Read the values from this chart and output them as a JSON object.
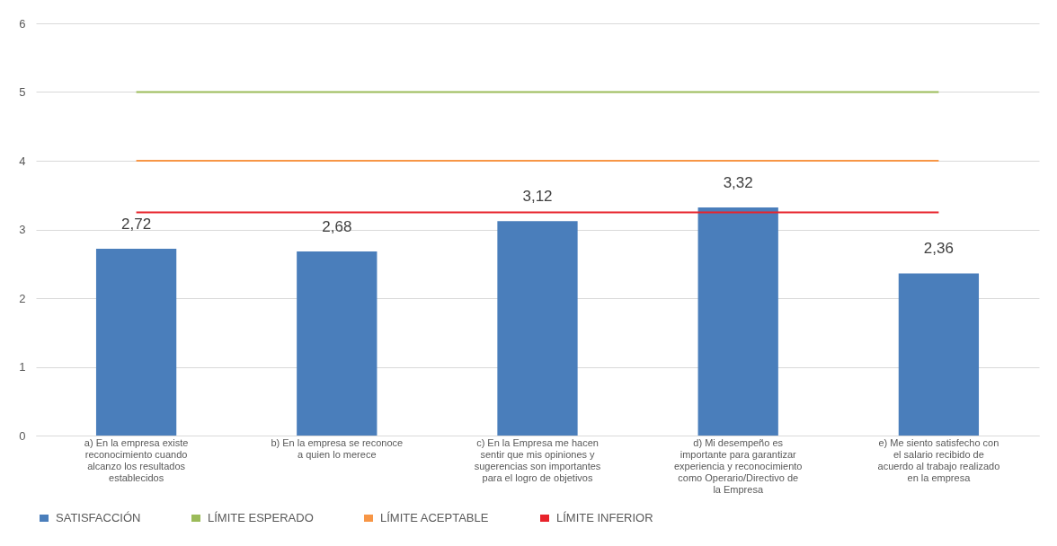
{
  "chart_data": {
    "type": "bar",
    "categories": [
      "a) En la empresa existe reconocimiento cuando alcanzo los resultados establecidos",
      "b) En la empresa se reconoce a quien lo merece",
      "c) En la Empresa me hacen sentir que mis opiniones y sugerencias son importantes para el logro de objetivos",
      "d) Mi desempeño es importante para garantizar experiencia y reconocimiento como Operario/Directivo de la Empresa",
      "e) Me siento satisfecho con el salario recibido de acuerdo al trabajo realizado en la empresa"
    ],
    "series": [
      {
        "name": "SATISFACCIÓN",
        "color": "#4a7ebb",
        "values": [
          2.72,
          2.68,
          3.12,
          3.32,
          2.36
        ],
        "value_labels": [
          "2,72",
          "2,68",
          "3,12",
          "3,32",
          "2,36"
        ]
      },
      {
        "name": "LÍMITE ESPERADO",
        "type": "line",
        "color": "#9bbb59",
        "values": [
          5,
          5,
          5,
          5,
          5
        ]
      },
      {
        "name": "LÍMITE ACEPTABLE",
        "type": "line",
        "color": "#f79646",
        "values": [
          4,
          4,
          4,
          4,
          4
        ]
      },
      {
        "name": "LÍMITE INFERIOR",
        "type": "line",
        "color": "#e8232b",
        "values": [
          3.25,
          3.25,
          3.25,
          3.25,
          3.25
        ]
      }
    ],
    "ylim": [
      0,
      6
    ],
    "yticks": [
      0,
      1,
      2,
      3,
      4,
      5,
      6
    ],
    "grid": "y",
    "legend": "bottom"
  }
}
